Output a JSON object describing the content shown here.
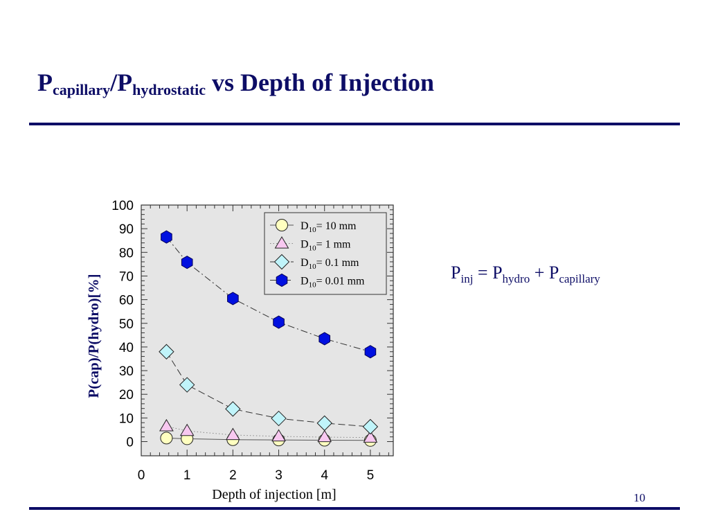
{
  "slide": {
    "title_main": "P",
    "title_sub1": "capillary",
    "title_slash": "/P",
    "title_sub2": "hydrostatic",
    "title_rest": " vs Depth of Injection",
    "equation": {
      "p1": "P",
      "s1": "inj",
      "eq": " = P",
      "s2": "hydro",
      "plus": " + P",
      "s3": "capillary"
    },
    "page_number": "10",
    "accent_color": "#0d0d66"
  },
  "chart_data": {
    "type": "line",
    "title": "",
    "xlabel": "Depth of injection  [m]",
    "ylabel": "P(cap)/P(hydro)[%]",
    "xlim": [
      0,
      5.5
    ],
    "ylim": [
      -6,
      100
    ],
    "xticks": [
      0,
      1,
      2,
      3,
      4,
      5
    ],
    "yticks": [
      0,
      10,
      20,
      30,
      40,
      50,
      60,
      70,
      80,
      90,
      100
    ],
    "grid": false,
    "background": "#e5e5e5",
    "legend_position": "top-right",
    "x": [
      0.55,
      1,
      2,
      3,
      4,
      5
    ],
    "series": [
      {
        "name": "D10 = 10 mm",
        "label_main": "D",
        "label_sub": "10",
        "label_rest": "= 10 mm",
        "marker": "circle",
        "fill": "#ffffc0",
        "line": "solid",
        "values": [
          1.5,
          1.2,
          0.8,
          0.7,
          0.6,
          0.5
        ]
      },
      {
        "name": "D10 = 1 mm",
        "label_main": "D",
        "label_sub": "10",
        "label_rest": "= 1 mm",
        "marker": "triangle",
        "fill": "#f8c8f0",
        "line": "dotted",
        "values": [
          6.5,
          4.5,
          2.8,
          2.2,
          1.9,
          1.7
        ]
      },
      {
        "name": "D10 = 0.1 mm",
        "label_main": "D",
        "label_sub": "10",
        "label_rest": "= 0.1 mm",
        "marker": "diamond",
        "fill": "#c0f4fa",
        "line": "dashed",
        "values": [
          38,
          24,
          13.8,
          9.8,
          7.8,
          6.3
        ]
      },
      {
        "name": "D10 = 0.01 mm",
        "label_main": "D",
        "label_sub": "10",
        "label_rest": "= 0.01 mm",
        "marker": "hexagon",
        "fill": "#0010e0",
        "line": "dashdot",
        "values": [
          86.5,
          75.8,
          60.5,
          50.5,
          43.5,
          38
        ]
      }
    ]
  }
}
